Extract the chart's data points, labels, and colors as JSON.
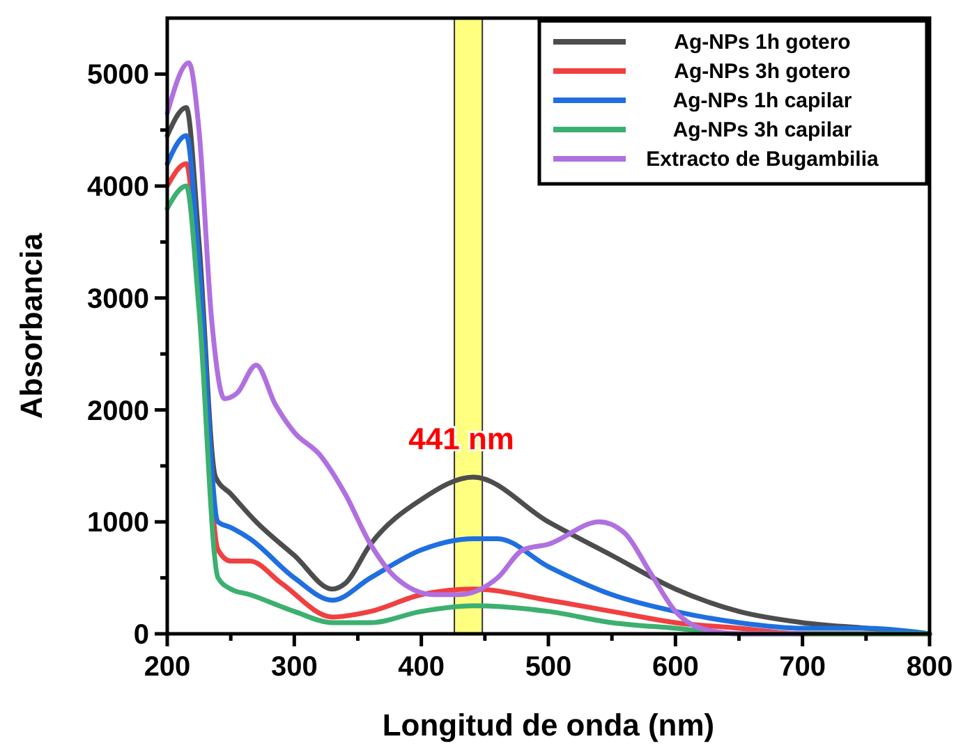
{
  "chart_data": {
    "type": "line",
    "xlabel": "Longitud de onda (nm)",
    "ylabel": "Absorbancia",
    "xlim": [
      200,
      800
    ],
    "ylim": [
      0,
      5500
    ],
    "xticks": [
      200,
      {
        "value": 250,
        "label": null
      },
      300,
      {
        "value": 350,
        "label": null
      },
      400,
      {
        "value": 450,
        "label": null
      },
      500,
      {
        "value": 550,
        "label": null
      },
      600,
      {
        "value": 650,
        "label": null
      },
      700,
      {
        "value": 750,
        "label": null
      },
      800
    ],
    "yticks": [
      0,
      {
        "value": 500,
        "label": null
      },
      1000,
      {
        "value": 1500,
        "label": null
      },
      2000,
      {
        "value": 2500,
        "label": null
      },
      3000,
      {
        "value": 3500,
        "label": null
      },
      4000,
      {
        "value": 4500,
        "label": null
      },
      5000
    ],
    "grid": false,
    "legend": "top right",
    "marker": "none",
    "line_style": "solid",
    "bands": [
      {
        "axis": "x",
        "from": 426,
        "to": 448,
        "color": "#ffff80",
        "label": "441 nm"
      }
    ],
    "series": [
      {
        "name": "Ag-NPs 1h gotero",
        "color": "#4d4d4d",
        "x": [
          200,
          215,
          225,
          238,
          250,
          270,
          300,
          330,
          340,
          360,
          400,
          441,
          500,
          550,
          600,
          650,
          700,
          750,
          800
        ],
        "values": [
          4450,
          4700,
          3500,
          1400,
          1250,
          1000,
          700,
          400,
          450,
          800,
          1200,
          1400,
          1000,
          700,
          400,
          200,
          100,
          50,
          0
        ]
      },
      {
        "name": "Ag-NPs 3h gotero",
        "color": "#f04040",
        "x": [
          200,
          215,
          225,
          240,
          250,
          265,
          290,
          330,
          360,
          400,
          441,
          500,
          550,
          600,
          650,
          700,
          800
        ],
        "values": [
          4000,
          4200,
          3000,
          750,
          650,
          650,
          450,
          150,
          200,
          350,
          400,
          300,
          200,
          100,
          50,
          0,
          0
        ]
      },
      {
        "name": "Ag-NPs 1h capilar",
        "color": "#1f6fe0",
        "x": [
          200,
          215,
          225,
          240,
          250,
          265,
          300,
          330,
          360,
          400,
          441,
          460,
          500,
          550,
          600,
          650,
          700,
          750,
          800
        ],
        "values": [
          4200,
          4450,
          3300,
          1000,
          950,
          850,
          500,
          300,
          500,
          750,
          850,
          850,
          600,
          350,
          200,
          100,
          50,
          50,
          0
        ]
      },
      {
        "name": "Ag-NPs 3h capilar",
        "color": "#3cb070",
        "x": [
          200,
          215,
          225,
          240,
          250,
          265,
          300,
          330,
          360,
          400,
          441,
          500,
          550,
          600,
          650,
          800
        ],
        "values": [
          3800,
          4000,
          2900,
          500,
          400,
          350,
          200,
          100,
          100,
          200,
          250,
          200,
          100,
          50,
          0,
          0
        ]
      },
      {
        "name": "Extracto de Bugambilia",
        "color": "#b070e0",
        "x": [
          200,
          217,
          225,
          235,
          245,
          255,
          270,
          285,
          300,
          320,
          340,
          360,
          380,
          410,
          430,
          460,
          480,
          500,
          540,
          560,
          580,
          600,
          620,
          650,
          700
        ],
        "values": [
          4650,
          5100,
          4500,
          2800,
          2100,
          2150,
          2400,
          2050,
          1800,
          1600,
          1250,
          800,
          500,
          350,
          350,
          500,
          750,
          800,
          1000,
          900,
          550,
          200,
          50,
          0,
          0
        ]
      }
    ]
  }
}
